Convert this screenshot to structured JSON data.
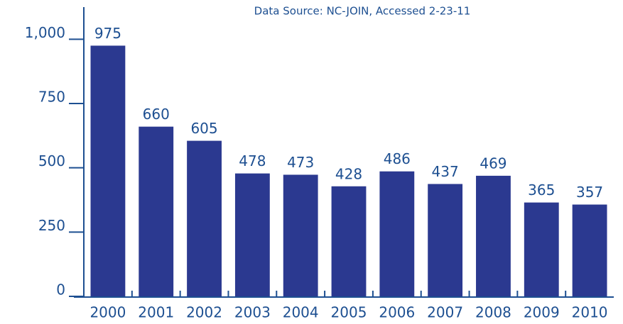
{
  "chart_data": {
    "type": "bar",
    "subtitle": "Data Source: NC-JOIN, Accessed 2-23-11",
    "categories": [
      "2000",
      "2001",
      "2002",
      "2003",
      "2004",
      "2005",
      "2006",
      "2007",
      "2008",
      "2009",
      "2010"
    ],
    "values": [
      975,
      660,
      605,
      478,
      473,
      428,
      486,
      437,
      469,
      365,
      357
    ],
    "color": "#2b3990",
    "ylim": [
      0,
      1125
    ],
    "yticks": [
      0,
      250,
      500,
      750,
      {
        "value": 1000,
        "label": "1,000"
      }
    ],
    "grid": false
  }
}
